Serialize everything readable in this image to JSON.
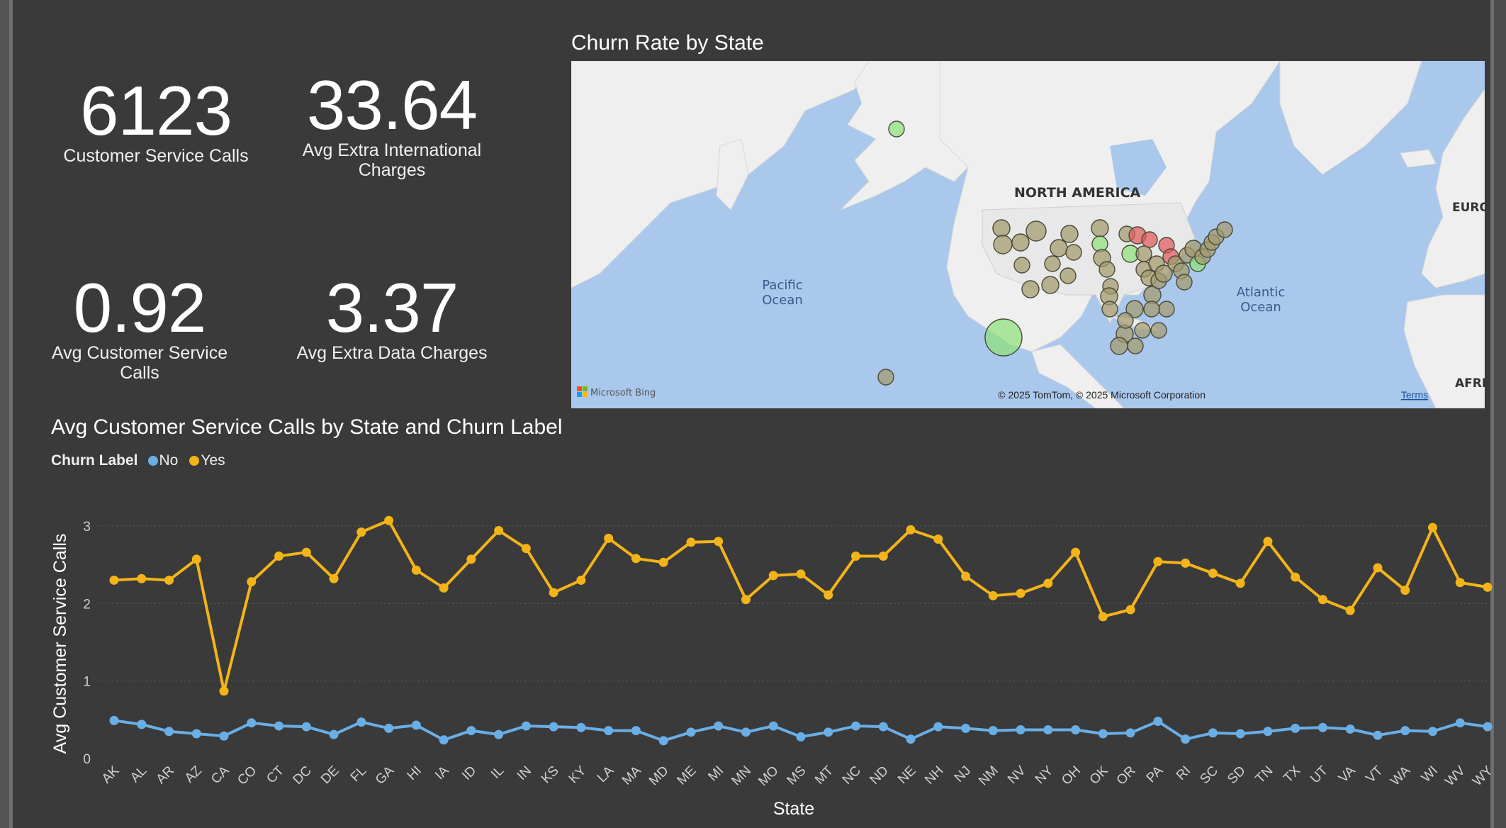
{
  "kpis": [
    {
      "value": "6123",
      "label": "Customer Service Calls"
    },
    {
      "value": "33.64",
      "label": "Avg Extra International Charges"
    },
    {
      "value": "0.92",
      "label": "Avg Customer Service Calls"
    },
    {
      "value": "3.37",
      "label": "Avg Extra Data Charges"
    }
  ],
  "map": {
    "title": "Churn Rate by State",
    "labels": {
      "continent": "NORTH AMERICA",
      "pacific": [
        "Pacific",
        "Ocean"
      ],
      "atlantic": [
        "Atlantic",
        "Ocean"
      ],
      "europe": "EURO",
      "africa": "AFRI"
    },
    "provider": "Microsoft Bing",
    "copyright": "© 2025 TomTom, © 2025 Microsoft Corporation",
    "terms": "Terms",
    "colors": {
      "water": "#a9c8ec",
      "land": "#efefef",
      "low": "#8ee07a",
      "mid": "#a49a6c",
      "high": "#e05a5a"
    }
  },
  "chart": {
    "title": "Avg Customer Service Calls by State and Churn Label",
    "legend_title": "Churn Label",
    "colors": {
      "No": "#6aaee6",
      "Yes": "#f2b418"
    }
  },
  "chart_data": {
    "type": "line",
    "title": "Avg Customer Service Calls by State and Churn Label",
    "xlabel": "State",
    "ylabel": "Avg Customer Service Calls",
    "ylim": [
      0,
      3.2
    ],
    "yticks": [
      0,
      1,
      2,
      3
    ],
    "grid": true,
    "legend_position": "top-left",
    "categories": [
      "AK",
      "AL",
      "AR",
      "AZ",
      "CA",
      "CO",
      "CT",
      "DC",
      "DE",
      "FL",
      "GA",
      "HI",
      "IA",
      "ID",
      "IL",
      "IN",
      "KS",
      "KY",
      "LA",
      "MA",
      "MD",
      "ME",
      "MI",
      "MN",
      "MO",
      "MS",
      "MT",
      "NC",
      "ND",
      "NE",
      "NH",
      "NJ",
      "NM",
      "NV",
      "NY",
      "OH",
      "OK",
      "OR",
      "PA",
      "RI",
      "SC",
      "SD",
      "TN",
      "TX",
      "UT",
      "VA",
      "VT",
      "WA",
      "WI",
      "WV",
      "WY"
    ],
    "series": [
      {
        "name": "No",
        "values": [
          0.49,
          0.44,
          0.35,
          0.32,
          0.29,
          0.46,
          0.42,
          0.41,
          0.31,
          0.47,
          0.39,
          0.43,
          0.24,
          0.36,
          0.31,
          0.42,
          0.41,
          0.4,
          0.36,
          0.36,
          0.23,
          0.34,
          0.42,
          0.34,
          0.42,
          0.28,
          0.34,
          0.42,
          0.41,
          0.25,
          0.41,
          0.39,
          0.36,
          0.37,
          0.37,
          0.37,
          0.32,
          0.33,
          0.48,
          0.25,
          0.33,
          0.32,
          0.35,
          0.39,
          0.4,
          0.38,
          0.3,
          0.36,
          0.35,
          0.46,
          0.41
        ]
      },
      {
        "name": "Yes",
        "values": [
          2.3,
          2.32,
          2.3,
          2.57,
          0.87,
          2.28,
          2.61,
          2.66,
          2.32,
          2.92,
          3.07,
          2.43,
          2.2,
          2.57,
          2.94,
          2.71,
          2.14,
          2.3,
          2.84,
          2.58,
          2.53,
          2.79,
          2.8,
          2.05,
          2.36,
          2.38,
          2.11,
          2.61,
          2.61,
          2.95,
          2.83,
          2.35,
          2.1,
          2.13,
          2.26,
          2.66,
          1.83,
          1.92,
          2.54,
          2.52,
          2.39,
          2.26,
          2.8,
          2.34,
          2.05,
          1.91,
          2.46,
          2.17,
          2.98,
          2.27,
          2.21
        ]
      }
    ]
  }
}
